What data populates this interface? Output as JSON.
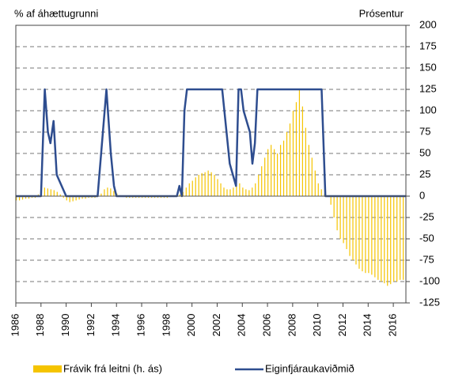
{
  "chart_data": {
    "type": "bar-line",
    "y_axis_label": "% af áhættugrunni",
    "y2_axis_label": "Prósentur",
    "xlim": [
      1986,
      2017
    ],
    "xticks": [
      1986,
      1988,
      1990,
      1992,
      1994,
      1996,
      1998,
      2000,
      2002,
      2004,
      2006,
      2008,
      2010,
      2012,
      2014,
      2016
    ],
    "y2lim": [
      -125,
      200
    ],
    "y2ticks": [
      200,
      175,
      150,
      125,
      100,
      75,
      50,
      25,
      0,
      -25,
      -50,
      -75,
      -100,
      -125
    ],
    "grid": true,
    "series": [
      {
        "name": "Frávik frá leitni (h. ás)",
        "color": "#f5c400",
        "kind": "bar",
        "axis": "y2",
        "x": [
          1986,
          1986.25,
          1986.5,
          1986.75,
          1987,
          1987.25,
          1987.5,
          1987.75,
          1988,
          1988.25,
          1988.5,
          1988.75,
          1989,
          1989.25,
          1989.5,
          1989.75,
          1990,
          1990.25,
          1990.5,
          1990.75,
          1991,
          1991.25,
          1991.5,
          1991.75,
          1992,
          1992.25,
          1992.5,
          1992.75,
          1993,
          1993.25,
          1993.5,
          1993.75,
          1994,
          1994.25,
          1994.5,
          1994.75,
          1995,
          1995.25,
          1995.5,
          1995.75,
          1996,
          1996.25,
          1996.5,
          1996.75,
          1997,
          1997.25,
          1997.5,
          1997.75,
          1998,
          1998.25,
          1998.5,
          1998.75,
          1999,
          1999.25,
          1999.5,
          1999.75,
          2000,
          2000.25,
          2000.5,
          2000.75,
          2001,
          2001.25,
          2001.5,
          2001.75,
          2002,
          2002.25,
          2002.5,
          2002.75,
          2003,
          2003.25,
          2003.5,
          2003.75,
          2004,
          2004.25,
          2004.5,
          2004.75,
          2005,
          2005.25,
          2005.5,
          2005.75,
          2006,
          2006.25,
          2006.5,
          2006.75,
          2007,
          2007.25,
          2007.5,
          2007.75,
          2008,
          2008.25,
          2008.5,
          2008.75,
          2009,
          2009.25,
          2009.5,
          2009.75,
          2010,
          2010.25,
          2010.5,
          2010.75,
          2011,
          2011.25,
          2011.5,
          2011.75,
          2012,
          2012.25,
          2012.5,
          2012.75,
          2013,
          2013.25,
          2013.5,
          2013.75,
          2014,
          2014.25,
          2014.5,
          2014.75,
          2015,
          2015.25,
          2015.5,
          2015.75,
          2016,
          2016.25,
          2016.5,
          2016.75
        ],
        "values": [
          -5,
          -5,
          -4,
          -3,
          -3,
          -2,
          -2,
          2,
          5,
          10,
          9,
          8,
          7,
          5,
          2,
          -2,
          -5,
          -7,
          -6,
          -5,
          -4,
          -3,
          -3,
          -2,
          -2,
          -2,
          0,
          3,
          8,
          10,
          9,
          6,
          3,
          1,
          -1,
          -2,
          -2,
          -2,
          -2,
          -2,
          -2,
          -2,
          -2,
          -2,
          -2,
          -2,
          -2,
          -2,
          -2,
          -1,
          -1,
          0,
          2,
          5,
          10,
          15,
          18,
          22,
          25,
          27,
          28,
          30,
          28,
          25,
          20,
          15,
          10,
          8,
          8,
          10,
          12,
          15,
          10,
          8,
          7,
          10,
          15,
          25,
          35,
          45,
          55,
          60,
          55,
          50,
          60,
          65,
          75,
          85,
          100,
          110,
          125,
          105,
          80,
          60,
          45,
          30,
          15,
          8,
          3,
          0,
          -10,
          -25,
          -40,
          -50,
          -55,
          -62,
          -70,
          -75,
          -80,
          -85,
          -88,
          -90,
          -90,
          -92,
          -95,
          -98,
          -100,
          -102,
          -105,
          -103,
          -100,
          -100,
          -98,
          -98
        ]
      },
      {
        "name": "Eiginfjáraukaviðmið",
        "color": "#2e4d8f",
        "kind": "line",
        "axis": "y2",
        "x": [
          1986,
          1988,
          1988.3,
          1988.55,
          1988.75,
          1989,
          1989.25,
          1990,
          1992.5,
          1993.2,
          1993.55,
          1993.8,
          1994,
          1998.8,
          1999,
          1999.2,
          1999.4,
          1999.6,
          2002.4,
          2003,
          2003.5,
          2003.7,
          2003.9,
          2004.1,
          2004.6,
          2004.8,
          2005,
          2005.2,
          2010.3,
          2010.6,
          2017
        ],
        "values": [
          0,
          0,
          125,
          75,
          62,
          88,
          25,
          0,
          0,
          125,
          50,
          12,
          0,
          0,
          12,
          0,
          100,
          125,
          125,
          38,
          12,
          125,
          125,
          100,
          75,
          38,
          62,
          125,
          125,
          0,
          0
        ]
      }
    ]
  }
}
